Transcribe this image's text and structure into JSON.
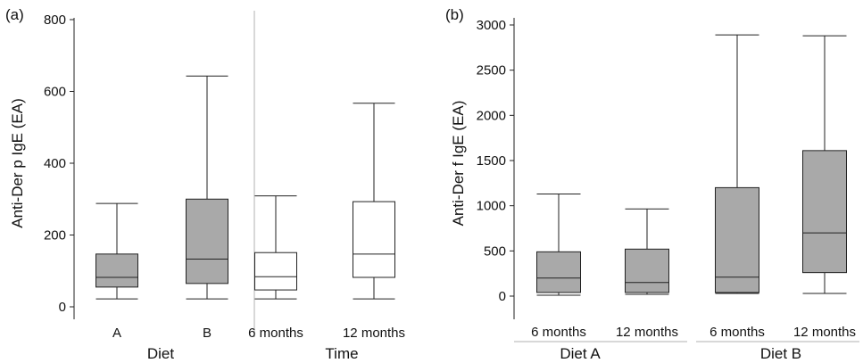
{
  "colors": {
    "filled": "#a9a9a9",
    "open": "#ffffff",
    "ink": "#222222",
    "separator": "#b0b0b0"
  },
  "chart_data": [
    {
      "panel_label": "(a)",
      "type": "box",
      "ylabel": "Anti-Der p IgE (EA)",
      "ylim": [
        0,
        800
      ],
      "yticks": [
        0,
        200,
        400,
        600,
        800
      ],
      "groups": [
        {
          "label": "Diet",
          "categories": [
            "A",
            "B"
          ]
        },
        {
          "label": "Time",
          "categories": [
            "6 months",
            "12 months"
          ]
        }
      ],
      "boxes": [
        {
          "category": "A",
          "min": 22,
          "q1": 55,
          "median": 82,
          "q3": 147,
          "max": 288,
          "fill": "filled"
        },
        {
          "category": "B",
          "min": 22,
          "q1": 65,
          "median": 133,
          "q3": 300,
          "max": 643,
          "fill": "filled"
        },
        {
          "category": "6 months",
          "min": 22,
          "q1": 47,
          "median": 84,
          "q3": 151,
          "max": 309,
          "fill": "open"
        },
        {
          "category": "12 months",
          "min": 22,
          "q1": 82,
          "median": 147,
          "q3": 293,
          "max": 567,
          "fill": "open"
        }
      ]
    },
    {
      "panel_label": "(b)",
      "type": "box",
      "ylabel": "Anti-Der f IgE (EA)",
      "ylim": [
        0,
        3000
      ],
      "yticks": [
        0,
        500,
        1000,
        1500,
        2000,
        2500,
        3000
      ],
      "groups": [
        {
          "label": "Diet A",
          "categories": [
            "6 months",
            "12 months"
          ]
        },
        {
          "label": "Diet B",
          "categories": [
            "6 months",
            "12 months"
          ]
        }
      ],
      "boxes": [
        {
          "category": "6 months",
          "min": 10,
          "q1": 40,
          "median": 200,
          "q3": 490,
          "max": 1130,
          "fill": "filled"
        },
        {
          "category": "12 months",
          "min": 20,
          "q1": 40,
          "median": 150,
          "q3": 520,
          "max": 965,
          "fill": "filled"
        },
        {
          "category": "6 months",
          "min": 30,
          "q1": 40,
          "median": 210,
          "q3": 1200,
          "max": 2890,
          "fill": "filled"
        },
        {
          "category": "12 months",
          "min": 30,
          "q1": 260,
          "median": 700,
          "q3": 1610,
          "max": 2880,
          "fill": "filled"
        }
      ]
    }
  ]
}
